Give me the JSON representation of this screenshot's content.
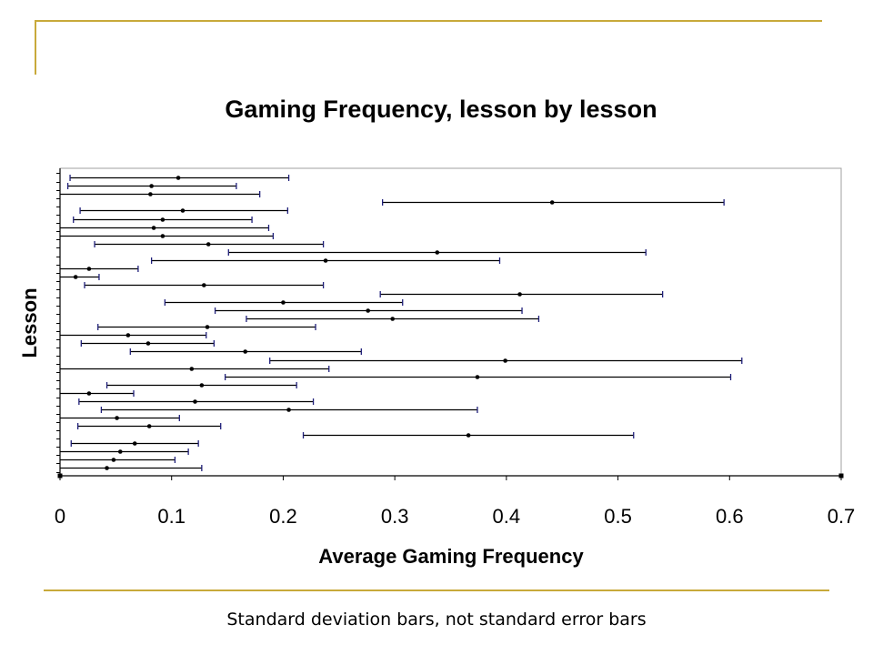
{
  "caption": "Standard deviation bars, not standard error bars",
  "colors": {
    "slide_accent": "#c8a93a",
    "whisker": "#1f1f7a",
    "bar": "#000000",
    "plot_border": "#a0a0a0"
  },
  "chart_data": {
    "type": "scatter",
    "title": "Gaming Frequency, lesson by lesson",
    "xlabel": "Average Gaming Frequency",
    "ylabel": "Lesson",
    "xlim": [
      0,
      0.7
    ],
    "xticks": [
      "0",
      "0.1",
      "0.2",
      "0.3",
      "0.4",
      "0.5",
      "0.6",
      "0.7"
    ],
    "grid": false,
    "error_bars": "standard deviation",
    "series": [
      {
        "points": [
          {
            "lesson": 1,
            "mean": 0.106,
            "low": 0.009,
            "high": 0.205
          },
          {
            "lesson": 2,
            "mean": 0.082,
            "low": 0.007,
            "high": 0.158
          },
          {
            "lesson": 3,
            "mean": 0.081,
            "low": 0.0,
            "high": 0.179
          },
          {
            "lesson": 4,
            "mean": 0.441,
            "low": 0.289,
            "high": 0.595
          },
          {
            "lesson": 5,
            "mean": 0.11,
            "low": 0.018,
            "high": 0.204
          },
          {
            "lesson": 6,
            "mean": 0.092,
            "low": 0.012,
            "high": 0.172
          },
          {
            "lesson": 7,
            "mean": 0.084,
            "low": 0.0,
            "high": 0.187
          },
          {
            "lesson": 8,
            "mean": 0.092,
            "low": 0.0,
            "high": 0.191
          },
          {
            "lesson": 9,
            "mean": 0.133,
            "low": 0.031,
            "high": 0.236
          },
          {
            "lesson": 10,
            "mean": 0.338,
            "low": 0.151,
            "high": 0.525
          },
          {
            "lesson": 11,
            "mean": 0.238,
            "low": 0.082,
            "high": 0.394
          },
          {
            "lesson": 12,
            "mean": 0.026,
            "low": 0.0,
            "high": 0.07
          },
          {
            "lesson": 13,
            "mean": 0.014,
            "low": 0.0,
            "high": 0.035
          },
          {
            "lesson": 14,
            "mean": 0.129,
            "low": 0.022,
            "high": 0.236
          },
          {
            "lesson": 15,
            "mean": 0.412,
            "low": 0.287,
            "high": 0.54
          },
          {
            "lesson": 16,
            "mean": 0.2,
            "low": 0.094,
            "high": 0.307
          },
          {
            "lesson": 17,
            "mean": 0.276,
            "low": 0.139,
            "high": 0.414
          },
          {
            "lesson": 18,
            "mean": 0.298,
            "low": 0.167,
            "high": 0.429
          },
          {
            "lesson": 19,
            "mean": 0.132,
            "low": 0.034,
            "high": 0.229
          },
          {
            "lesson": 20,
            "mean": 0.061,
            "low": 0.0,
            "high": 0.131
          },
          {
            "lesson": 21,
            "mean": 0.079,
            "low": 0.019,
            "high": 0.138
          },
          {
            "lesson": 22,
            "mean": 0.166,
            "low": 0.063,
            "high": 0.27
          },
          {
            "lesson": 23,
            "mean": 0.399,
            "low": 0.188,
            "high": 0.611
          },
          {
            "lesson": 24,
            "mean": 0.118,
            "low": 0.0,
            "high": 0.241
          },
          {
            "lesson": 25,
            "mean": 0.374,
            "low": 0.148,
            "high": 0.601
          },
          {
            "lesson": 26,
            "mean": 0.127,
            "low": 0.042,
            "high": 0.212
          },
          {
            "lesson": 27,
            "mean": 0.026,
            "low": 0.0,
            "high": 0.066
          },
          {
            "lesson": 28,
            "mean": 0.121,
            "low": 0.017,
            "high": 0.227
          },
          {
            "lesson": 29,
            "mean": 0.205,
            "low": 0.037,
            "high": 0.374
          },
          {
            "lesson": 30,
            "mean": 0.051,
            "low": 0.0,
            "high": 0.107
          },
          {
            "lesson": 31,
            "mean": 0.08,
            "low": 0.016,
            "high": 0.144
          },
          {
            "lesson": 32,
            "mean": 0.366,
            "low": 0.218,
            "high": 0.514
          },
          {
            "lesson": 33,
            "mean": 0.067,
            "low": 0.01,
            "high": 0.124
          },
          {
            "lesson": 34,
            "mean": 0.054,
            "low": 0.0,
            "high": 0.115
          },
          {
            "lesson": 35,
            "mean": 0.048,
            "low": 0.0,
            "high": 0.103
          },
          {
            "lesson": 36,
            "mean": 0.042,
            "low": 0.0,
            "high": 0.127
          }
        ]
      }
    ]
  }
}
